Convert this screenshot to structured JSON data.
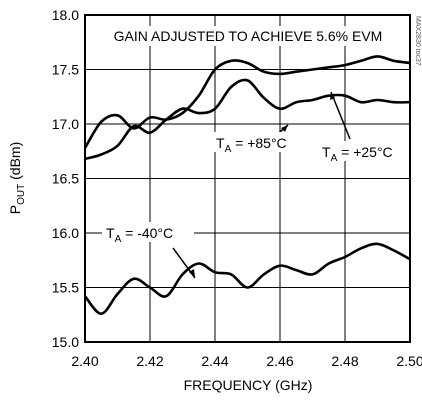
{
  "chart_data": {
    "type": "line",
    "title": "GAIN ADJUSTED TO ACHIEVE 5.6% EVM",
    "xlabel": "FREQUENCY (GHz)",
    "ylabel": {
      "main": "P",
      "sub": "OUT",
      "unit": " (dBm)"
    },
    "xlim": [
      2.4,
      2.5
    ],
    "ylim": [
      15.0,
      18.0
    ],
    "x_ticks": [
      "2.40",
      "2.42",
      "2.44",
      "2.46",
      "2.48",
      "2.50"
    ],
    "y_ticks": [
      "15.0",
      "15.5",
      "16.0",
      "16.5",
      "17.0",
      "17.5",
      "18.0"
    ],
    "grid": true,
    "watermark": "MAX2830 toc37",
    "series": [
      {
        "name": "T_A = +85°C",
        "label": {
          "pre": "T",
          "sub": "A",
          "post": " = +85°C"
        },
        "x": [
          2.4,
          2.405,
          2.41,
          2.415,
          2.42,
          2.425,
          2.43,
          2.435,
          2.44,
          2.445,
          2.45,
          2.455,
          2.46,
          2.465,
          2.47,
          2.475,
          2.48,
          2.485,
          2.49,
          2.495,
          2.5
        ],
        "y": [
          16.78,
          17.02,
          17.08,
          16.96,
          17.06,
          17.04,
          17.1,
          17.26,
          17.5,
          17.58,
          17.56,
          17.48,
          17.46,
          17.48,
          17.5,
          17.52,
          17.54,
          17.58,
          17.62,
          17.58,
          17.56
        ]
      },
      {
        "name": "T_A = +25°C",
        "label": {
          "pre": "T",
          "sub": "A",
          "post": " = +25°C"
        },
        "x": [
          2.4,
          2.405,
          2.41,
          2.415,
          2.42,
          2.425,
          2.43,
          2.435,
          2.44,
          2.445,
          2.45,
          2.455,
          2.46,
          2.465,
          2.47,
          2.475,
          2.48,
          2.485,
          2.49,
          2.495,
          2.5
        ],
        "y": [
          16.68,
          16.72,
          16.8,
          16.98,
          16.92,
          17.04,
          17.14,
          17.1,
          17.14,
          17.34,
          17.4,
          17.24,
          17.14,
          17.2,
          17.22,
          17.26,
          17.26,
          17.2,
          17.22,
          17.2,
          17.2
        ]
      },
      {
        "name": "T_A = -40°C",
        "label": {
          "pre": "T",
          "sub": "A",
          "post": " = -40°C"
        },
        "x": [
          2.4,
          2.405,
          2.41,
          2.415,
          2.42,
          2.425,
          2.43,
          2.435,
          2.44,
          2.445,
          2.45,
          2.455,
          2.46,
          2.465,
          2.47,
          2.475,
          2.48,
          2.485,
          2.49,
          2.495,
          2.5
        ],
        "y": [
          15.42,
          15.26,
          15.44,
          15.58,
          15.5,
          15.42,
          15.62,
          15.72,
          15.64,
          15.62,
          15.5,
          15.62,
          15.7,
          15.66,
          15.62,
          15.72,
          15.78,
          15.86,
          15.9,
          15.84,
          15.76
        ]
      }
    ]
  }
}
